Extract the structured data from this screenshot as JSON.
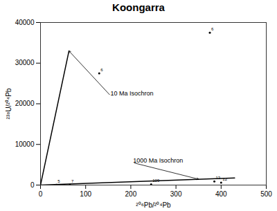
{
  "chart_data": {
    "type": "scatter",
    "title": "Koongarra",
    "xlabel": "²⁰⁶Pb/²⁰⁴Pb",
    "ylabel": "²³⁸U/²⁰⁴Pb",
    "x": [
      35,
      65,
      130,
      245,
      375,
      385,
      400
    ],
    "values": [
      30,
      30,
      27500,
      180,
      37500,
      900,
      600
    ],
    "labels": [
      "5",
      "7",
      "6",
      "109",
      "6",
      "13",
      "12"
    ],
    "color": "#000000",
    "lines": [
      {
        "type": "line",
        "x": [
          0,
          63
        ],
        "values": [
          0,
          33000
        ],
        "color": "#000000"
      },
      {
        "type": "line",
        "x": [
          0,
          430
        ],
        "values": [
          0,
          1750
        ],
        "color": "#000000"
      }
    ],
    "annotations": [
      {
        "text": "10 Ma Isochron",
        "x": 155,
        "y": 22000,
        "arrow_x": 63,
        "arrow_y": 33000
      },
      {
        "text": "1000 Ma Isochron",
        "x": 205,
        "y": 5500,
        "arrow_x": 350,
        "arrow_y": 1450
      }
    ],
    "xlim": [
      0,
      500
    ],
    "ylim": [
      0,
      40000
    ],
    "xticks": [
      0,
      100,
      200,
      300,
      400,
      500
    ],
    "yticks": [
      0,
      10000,
      20000,
      30000,
      40000
    ],
    "grid": false
  }
}
